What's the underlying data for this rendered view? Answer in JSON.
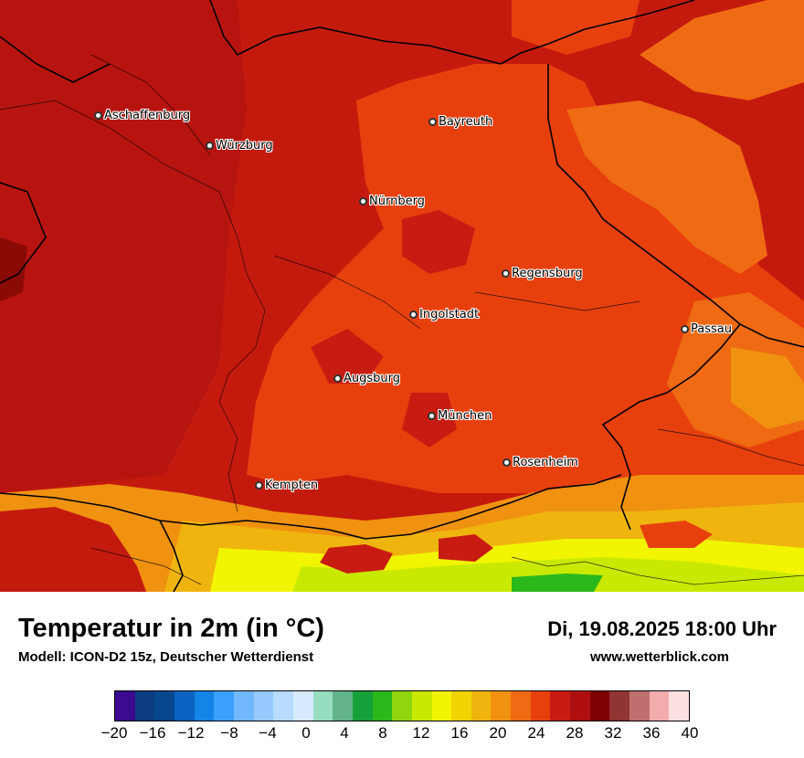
{
  "map": {
    "cities": [
      {
        "name": "Aschaffenburg"
      },
      {
        "name": "Würzburg"
      },
      {
        "name": "Bayreuth"
      },
      {
        "name": "Nürnberg"
      },
      {
        "name": "Regensburg"
      },
      {
        "name": "Ingolstadt"
      },
      {
        "name": "Passau"
      },
      {
        "name": "Augsburg"
      },
      {
        "name": "München"
      },
      {
        "name": "Rosenheim"
      },
      {
        "name": "Kempten"
      }
    ]
  },
  "footer": {
    "title": "Temperatur in 2m (in °C)",
    "subtitle": "Modell: ICON-D2 15z, Deutscher Wetterdienst",
    "datetime": "Di, 19.08.2025 18:00 Uhr",
    "website": "www.wetterblick.com"
  },
  "legend": {
    "colors": [
      "#3b0a8e",
      "#0c3d80",
      "#06468f",
      "#0a63c0",
      "#1484e6",
      "#3aa0ff",
      "#72b8ff",
      "#95c9ff",
      "#b8dbff",
      "#d6eaff",
      "#96ddc0",
      "#63b48a",
      "#16a03a",
      "#2ab81b",
      "#8fd60e",
      "#c9ea00",
      "#f2f500",
      "#f0d400",
      "#efb50e",
      "#f0910f",
      "#ef6a12",
      "#e8400d",
      "#c81c12",
      "#b00f12",
      "#7e0000",
      "#913434",
      "#c06f6f",
      "#f2acac",
      "#fde0e0"
    ],
    "ticks": [
      "−20",
      "−16",
      "−12",
      "−8",
      "−4",
      "0",
      "4",
      "8",
      "12",
      "16",
      "20",
      "24",
      "28",
      "32",
      "36",
      "40"
    ]
  }
}
